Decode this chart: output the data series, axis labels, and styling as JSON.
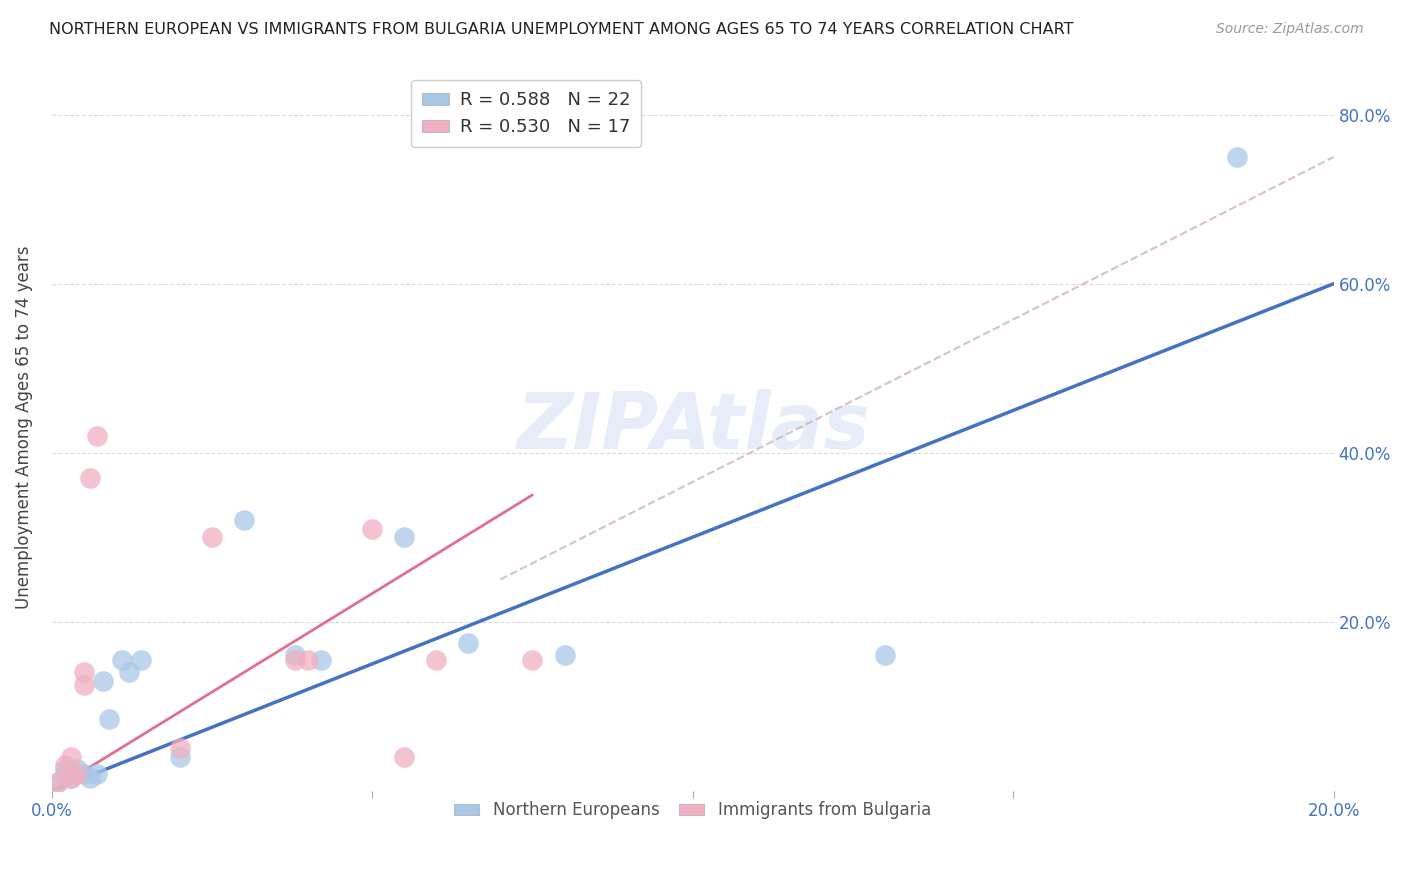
{
  "title": "NORTHERN EUROPEAN VS IMMIGRANTS FROM BULGARIA UNEMPLOYMENT AMONG AGES 65 TO 74 YEARS CORRELATION CHART",
  "source": "Source: ZipAtlas.com",
  "ylabel": "Unemployment Among Ages 65 to 74 years",
  "xlim": [
    0,
    0.2
  ],
  "ylim": [
    0,
    0.86
  ],
  "legend_ne_r": "R = 0.588",
  "legend_ne_n": "N = 22",
  "legend_bg_r": "R = 0.530",
  "legend_bg_n": "N = 17",
  "ne_color": "#a8c8e8",
  "bg_color": "#f0b0c0",
  "ne_line_color": "#4472c4",
  "bg_line_color": "#e07090",
  "ne_x": [
    0.001,
    0.002,
    0.002,
    0.003,
    0.004,
    0.005,
    0.006,
    0.007,
    0.008,
    0.009,
    0.011,
    0.012,
    0.014,
    0.02,
    0.03,
    0.038,
    0.042,
    0.055,
    0.065,
    0.08,
    0.13,
    0.185
  ],
  "ne_y": [
    0.01,
    0.02,
    0.025,
    0.015,
    0.025,
    0.02,
    0.015,
    0.02,
    0.13,
    0.085,
    0.155,
    0.14,
    0.155,
    0.04,
    0.32,
    0.16,
    0.155,
    0.3,
    0.175,
    0.16,
    0.16,
    0.75
  ],
  "bg_x": [
    0.001,
    0.002,
    0.003,
    0.003,
    0.004,
    0.005,
    0.005,
    0.006,
    0.007,
    0.02,
    0.025,
    0.038,
    0.04,
    0.05,
    0.055,
    0.06,
    0.075
  ],
  "bg_y": [
    0.01,
    0.03,
    0.015,
    0.04,
    0.02,
    0.125,
    0.14,
    0.37,
    0.42,
    0.05,
    0.3,
    0.155,
    0.155,
    0.31,
    0.04,
    0.155,
    0.155
  ],
  "ne_line_x0": 0.0,
  "ne_line_y0": 0.0,
  "ne_line_x1": 0.2,
  "ne_line_y1": 0.6,
  "bg_line_x0": 0.0,
  "bg_line_y0": 0.0,
  "bg_line_x1": 0.075,
  "bg_line_y1": 0.35,
  "dash_line_x0": 0.07,
  "dash_line_y0": 0.25,
  "dash_line_x1": 0.2,
  "dash_line_y1": 0.75,
  "background_color": "#ffffff",
  "grid_color": "#d8d8d8"
}
